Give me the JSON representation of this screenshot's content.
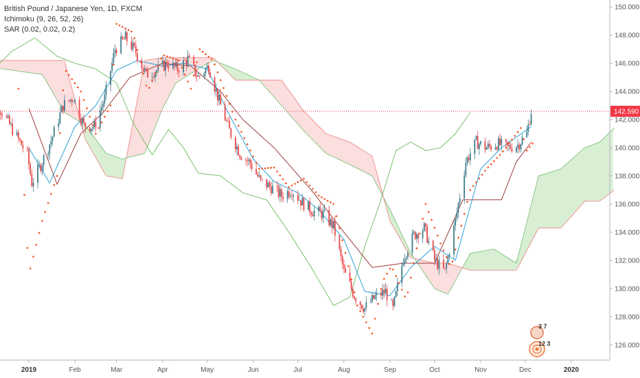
{
  "legend": {
    "symbol": "British Pound / Japanese Yen, 1D, FXCM",
    "ichimoku": "Ichimoku (9, 26, 52, 26)",
    "sar": "SAR (0.02, 0.02, 0.2)"
  },
  "badge": {
    "top": "3 7",
    "bottom": "12 3"
  },
  "colors": {
    "up": "#3e7b8c",
    "down": "#e8474a",
    "tenkan": "#2a9fd6",
    "kijun": "#9c3b3b",
    "span_a": "#7bc27b",
    "span_b": "#ee8a8a",
    "lagging": "#6aba5c",
    "sar": "#f4511e",
    "cloud_bull": "#a8dba0",
    "cloud_bear": "#f6b5b5",
    "last_price": "#f23645"
  },
  "chart_data": {
    "type": "candlestick",
    "title": "British Pound / Japanese Yen, 1D, FXCM",
    "ylim": [
      125.6,
      150.2
    ],
    "y_ticks": [
      "126.000",
      "128.000",
      "130.000",
      "132.000",
      "134.000",
      "136.000",
      "138.000",
      "140.000",
      "142.000",
      "144.000",
      "146.000",
      "148.000",
      "150.000"
    ],
    "x_ticks": [
      {
        "label": "2019",
        "date": "2019-01-01",
        "bold": true
      },
      {
        "label": "Feb",
        "date": "2019-02-01"
      },
      {
        "label": "Mar",
        "date": "2019-03-01"
      },
      {
        "label": "Apr",
        "date": "2019-04-01"
      },
      {
        "label": "May",
        "date": "2019-05-01"
      },
      {
        "label": "Jun",
        "date": "2019-06-01"
      },
      {
        "label": "Jul",
        "date": "2019-07-01"
      },
      {
        "label": "Aug",
        "date": "2019-08-01"
      },
      {
        "label": "Sep",
        "date": "2019-09-01"
      },
      {
        "label": "Oct",
        "date": "2019-10-01"
      },
      {
        "label": "Nov",
        "date": "2019-11-01"
      },
      {
        "label": "Dec",
        "date": "2019-12-01"
      },
      {
        "label": "2020",
        "date": "2020-01-01",
        "bold": true
      }
    ],
    "last_price": "142.590",
    "price_path": [
      [
        "2018-12-03",
        144.5
      ],
      [
        "2018-12-17",
        142.0
      ],
      [
        "2018-12-31",
        139.5
      ],
      [
        "2019-01-03",
        137.5
      ],
      [
        "2019-01-10",
        139.0
      ],
      [
        "2019-01-17",
        140.8
      ],
      [
        "2019-01-24",
        143.0
      ],
      [
        "2019-01-31",
        143.6
      ],
      [
        "2019-02-07",
        141.6
      ],
      [
        "2019-02-14",
        141.5
      ],
      [
        "2019-02-21",
        143.5
      ],
      [
        "2019-02-28",
        147.0
      ],
      [
        "2019-03-07",
        147.8
      ],
      [
        "2019-03-14",
        146.8
      ],
      [
        "2019-03-21",
        145.2
      ],
      [
        "2019-03-28",
        145.5
      ],
      [
        "2019-04-04",
        146.0
      ],
      [
        "2019-04-11",
        145.6
      ],
      [
        "2019-04-18",
        146.3
      ],
      [
        "2019-04-25",
        145.0
      ],
      [
        "2019-05-02",
        145.8
      ],
      [
        "2019-05-09",
        143.3
      ],
      [
        "2019-05-16",
        141.2
      ],
      [
        "2019-05-23",
        139.6
      ],
      [
        "2019-05-30",
        138.9
      ],
      [
        "2019-06-06",
        137.6
      ],
      [
        "2019-06-13",
        137.2
      ],
      [
        "2019-06-20",
        136.6
      ],
      [
        "2019-06-27",
        137.0
      ],
      [
        "2019-07-04",
        136.1
      ],
      [
        "2019-07-11",
        135.5
      ],
      [
        "2019-07-18",
        135.3
      ],
      [
        "2019-07-25",
        134.4
      ],
      [
        "2019-08-01",
        131.2
      ],
      [
        "2019-08-08",
        129.5
      ],
      [
        "2019-08-15",
        128.6
      ],
      [
        "2019-08-22",
        129.4
      ],
      [
        "2019-08-29",
        129.8
      ],
      [
        "2019-09-03",
        128.5
      ],
      [
        "2019-09-10",
        132.2
      ],
      [
        "2019-09-17",
        133.8
      ],
      [
        "2019-09-24",
        134.3
      ],
      [
        "2019-10-01",
        132.0
      ],
      [
        "2019-10-08",
        131.2
      ],
      [
        "2019-10-15",
        134.8
      ],
      [
        "2019-10-22",
        139.0
      ],
      [
        "2019-10-29",
        140.4
      ],
      [
        "2019-11-05",
        140.0
      ],
      [
        "2019-11-12",
        140.3
      ],
      [
        "2019-11-19",
        140.0
      ],
      [
        "2019-11-26",
        140.2
      ],
      [
        "2019-12-02",
        141.0
      ],
      [
        "2019-12-05",
        142.6
      ]
    ],
    "tenkan": [
      [
        "2019-01-01",
        140.0
      ],
      [
        "2019-01-15",
        137.5
      ],
      [
        "2019-02-01",
        141.5
      ],
      [
        "2019-02-15",
        143.0
      ],
      [
        "2019-03-01",
        145.5
      ],
      [
        "2019-03-15",
        146.2
      ],
      [
        "2019-04-01",
        145.8
      ],
      [
        "2019-04-15",
        146.0
      ],
      [
        "2019-05-01",
        145.6
      ],
      [
        "2019-05-15",
        142.5
      ],
      [
        "2019-06-01",
        139.2
      ],
      [
        "2019-06-15",
        137.6
      ],
      [
        "2019-07-01",
        136.8
      ],
      [
        "2019-07-15",
        135.6
      ],
      [
        "2019-08-01",
        133.5
      ],
      [
        "2019-08-15",
        129.8
      ],
      [
        "2019-09-01",
        129.5
      ],
      [
        "2019-09-15",
        131.5
      ],
      [
        "2019-10-01",
        133.0
      ],
      [
        "2019-10-15",
        132.0
      ],
      [
        "2019-11-01",
        138.5
      ],
      [
        "2019-11-15",
        140.0
      ],
      [
        "2019-12-05",
        141.5
      ]
    ],
    "kijun": [
      [
        "2019-01-01",
        142.8
      ],
      [
        "2019-01-20",
        137.4
      ],
      [
        "2019-02-05",
        141.0
      ],
      [
        "2019-02-20",
        142.5
      ],
      [
        "2019-03-10",
        145.0
      ],
      [
        "2019-04-01",
        146.0
      ],
      [
        "2019-04-20",
        145.8
      ],
      [
        "2019-05-10",
        144.0
      ],
      [
        "2019-05-25",
        142.0
      ],
      [
        "2019-06-15",
        140.0
      ],
      [
        "2019-07-10",
        137.0
      ],
      [
        "2019-08-01",
        134.0
      ],
      [
        "2019-08-20",
        131.5
      ],
      [
        "2019-09-10",
        131.8
      ],
      [
        "2019-10-01",
        131.8
      ],
      [
        "2019-10-20",
        136.3
      ],
      [
        "2019-11-15",
        136.3
      ],
      [
        "2019-11-25",
        139.0
      ],
      [
        "2019-12-05",
        140.4
      ]
    ],
    "span_a": [
      [
        "2018-12-01",
        145.8
      ],
      [
        "2019-01-10",
        145.2
      ],
      [
        "2019-01-25",
        142.5
      ],
      [
        "2019-02-08",
        141.6
      ],
      [
        "2019-02-22",
        139.6
      ],
      [
        "2019-03-05",
        139.2
      ],
      [
        "2019-03-20",
        139.6
      ],
      [
        "2019-04-01",
        142.8
      ],
      [
        "2019-04-10",
        144.6
      ],
      [
        "2019-04-25",
        145.6
      ],
      [
        "2019-05-05",
        146.2
      ],
      [
        "2019-05-20",
        145.6
      ],
      [
        "2019-06-05",
        144.8
      ],
      [
        "2019-06-20",
        143.0
      ],
      [
        "2019-07-05",
        141.2
      ],
      [
        "2019-07-20",
        139.6
      ],
      [
        "2019-08-05",
        138.8
      ],
      [
        "2019-08-20",
        138.0
      ],
      [
        "2019-09-01",
        135.6
      ],
      [
        "2019-09-15",
        132.5
      ],
      [
        "2019-10-01",
        130.0
      ],
      [
        "2019-10-10",
        129.6
      ],
      [
        "2019-10-25",
        132.5
      ],
      [
        "2019-11-10",
        132.8
      ],
      [
        "2019-11-25",
        131.8
      ],
      [
        "2019-12-10",
        138.0
      ],
      [
        "2019-12-25",
        138.5
      ],
      [
        "2020-01-10",
        140.0
      ],
      [
        "2020-01-20",
        140.4
      ],
      [
        "2020-01-30",
        141.4
      ]
    ],
    "span_b": [
      [
        "2018-12-01",
        146.2
      ],
      [
        "2019-01-10",
        146.2
      ],
      [
        "2019-01-25",
        146.2
      ],
      [
        "2019-02-08",
        140.6
      ],
      [
        "2019-02-22",
        138.0
      ],
      [
        "2019-03-05",
        137.8
      ],
      [
        "2019-03-20",
        146.2
      ],
      [
        "2019-04-01",
        146.4
      ],
      [
        "2019-04-10",
        146.4
      ],
      [
        "2019-04-25",
        146.4
      ],
      [
        "2019-05-05",
        146.4
      ],
      [
        "2019-05-20",
        144.8
      ],
      [
        "2019-06-05",
        144.8
      ],
      [
        "2019-06-20",
        144.8
      ],
      [
        "2019-07-05",
        142.6
      ],
      [
        "2019-07-20",
        141.0
      ],
      [
        "2019-08-05",
        140.4
      ],
      [
        "2019-08-20",
        139.4
      ],
      [
        "2019-09-01",
        134.8
      ],
      [
        "2019-09-15",
        132.2
      ],
      [
        "2019-10-01",
        131.8
      ],
      [
        "2019-10-10",
        131.8
      ],
      [
        "2019-10-25",
        131.3
      ],
      [
        "2019-11-10",
        131.3
      ],
      [
        "2019-11-25",
        131.3
      ],
      [
        "2019-12-10",
        134.3
      ],
      [
        "2019-12-25",
        134.3
      ],
      [
        "2020-01-10",
        136.2
      ],
      [
        "2020-01-20",
        136.2
      ],
      [
        "2020-01-30",
        137.0
      ]
    ],
    "lagging": [
      [
        "2018-12-03",
        145.0
      ],
      [
        "2018-12-20",
        146.8
      ],
      [
        "2019-01-05",
        147.8
      ],
      [
        "2019-01-20",
        146.5
      ],
      [
        "2019-02-01",
        146.0
      ],
      [
        "2019-02-15",
        145.6
      ],
      [
        "2019-03-01",
        144.6
      ],
      [
        "2019-03-12",
        141.8
      ],
      [
        "2019-03-25",
        139.5
      ],
      [
        "2019-04-05",
        141.3
      ],
      [
        "2019-04-15",
        140.0
      ],
      [
        "2019-04-25",
        138.2
      ],
      [
        "2019-05-10",
        138.0
      ],
      [
        "2019-05-25",
        136.8
      ],
      [
        "2019-06-10",
        136.3
      ],
      [
        "2019-06-25",
        134.0
      ],
      [
        "2019-07-10",
        131.5
      ],
      [
        "2019-07-25",
        128.8
      ],
      [
        "2019-08-05",
        129.4
      ],
      [
        "2019-08-15",
        133.0
      ],
      [
        "2019-08-25",
        136.0
      ],
      [
        "2019-09-05",
        139.8
      ],
      [
        "2019-09-15",
        140.4
      ],
      [
        "2019-09-25",
        139.8
      ],
      [
        "2019-10-05",
        140.0
      ],
      [
        "2019-10-15",
        141.0
      ],
      [
        "2019-10-25",
        142.5
      ]
    ],
    "sar": [
      [
        "2018-12-25",
        144.2
      ],
      [
        "2019-01-01",
        131.0
      ],
      [
        "2019-01-10",
        134.8
      ],
      [
        "2019-01-20",
        138.0
      ],
      [
        "2019-01-25",
        145.6
      ],
      [
        "2019-02-05",
        144.0
      ],
      [
        "2019-02-15",
        141.0
      ],
      [
        "2019-02-25",
        143.0
      ],
      [
        "2019-03-01",
        148.8
      ],
      [
        "2019-03-12",
        148.2
      ],
      [
        "2019-03-22",
        144.0
      ],
      [
        "2019-04-01",
        146.6
      ],
      [
        "2019-04-12",
        146.2
      ],
      [
        "2019-04-20",
        144.2
      ],
      [
        "2019-04-26",
        147.0
      ],
      [
        "2019-05-05",
        146.2
      ],
      [
        "2019-05-20",
        142.0
      ],
      [
        "2019-06-05",
        138.5
      ],
      [
        "2019-06-15",
        138.6
      ],
      [
        "2019-06-25",
        137.2
      ],
      [
        "2019-07-05",
        137.8
      ],
      [
        "2019-07-15",
        136.6
      ],
      [
        "2019-07-25",
        136.0
      ],
      [
        "2019-08-01",
        133.0
      ],
      [
        "2019-08-10",
        128.8
      ],
      [
        "2019-08-20",
        126.8
      ],
      [
        "2019-08-27",
        130.5
      ],
      [
        "2019-09-02",
        131.6
      ],
      [
        "2019-09-12",
        129.2
      ],
      [
        "2019-09-25",
        136.0
      ],
      [
        "2019-10-05",
        133.2
      ],
      [
        "2019-10-12",
        131.5
      ],
      [
        "2019-10-25",
        137.0
      ],
      [
        "2019-11-05",
        138.5
      ],
      [
        "2019-11-15",
        139.6
      ],
      [
        "2019-11-28",
        141.4
      ],
      [
        "2019-12-02",
        139.8
      ],
      [
        "2019-12-06",
        140.3
      ]
    ]
  }
}
